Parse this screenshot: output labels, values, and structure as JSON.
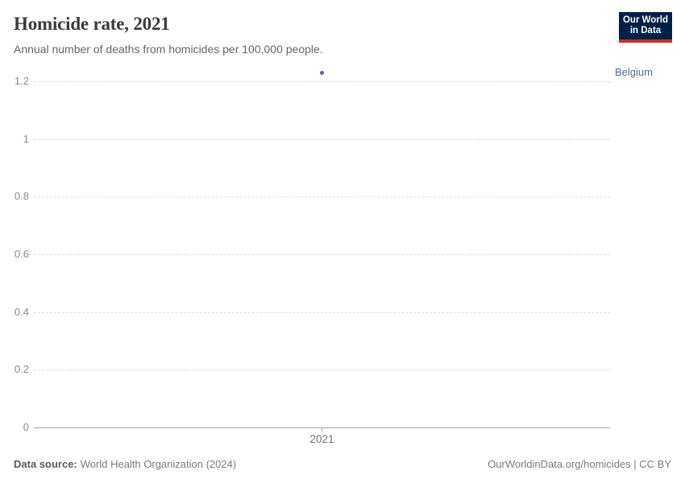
{
  "header": {
    "title": "Homicide rate, 2021",
    "subtitle": "Annual number of deaths from homicides per 100,000 people.",
    "logo": {
      "line1": "Our World",
      "line2": "in Data"
    }
  },
  "chart_data": {
    "type": "scatter",
    "x": [
      2021
    ],
    "x_tick_labels": [
      "2021"
    ],
    "series": [
      {
        "name": "Belgium",
        "values": [
          1.23
        ],
        "color": "#4c6a9e"
      }
    ],
    "title": "Homicide rate, 2021",
    "xlabel": "",
    "ylabel": "",
    "ylim": [
      0,
      1.2
    ],
    "yticks": [
      0,
      0.2,
      0.4,
      0.6,
      0.8,
      1,
      1.2
    ],
    "grid": "horizontal-dashed",
    "legend_position": "entity-label-right-of-plot"
  },
  "colors": {
    "accent_point": "#4c6a9e",
    "logo_bg": "#002147",
    "logo_accent": "#d42b21",
    "gridline": "#dedede",
    "axis": "#a5a5a5"
  },
  "footer": {
    "source_label": "Data source:",
    "source_value": "World Health Organization (2024)",
    "credit": "OurWorldinData.org/homicides | CC BY"
  }
}
